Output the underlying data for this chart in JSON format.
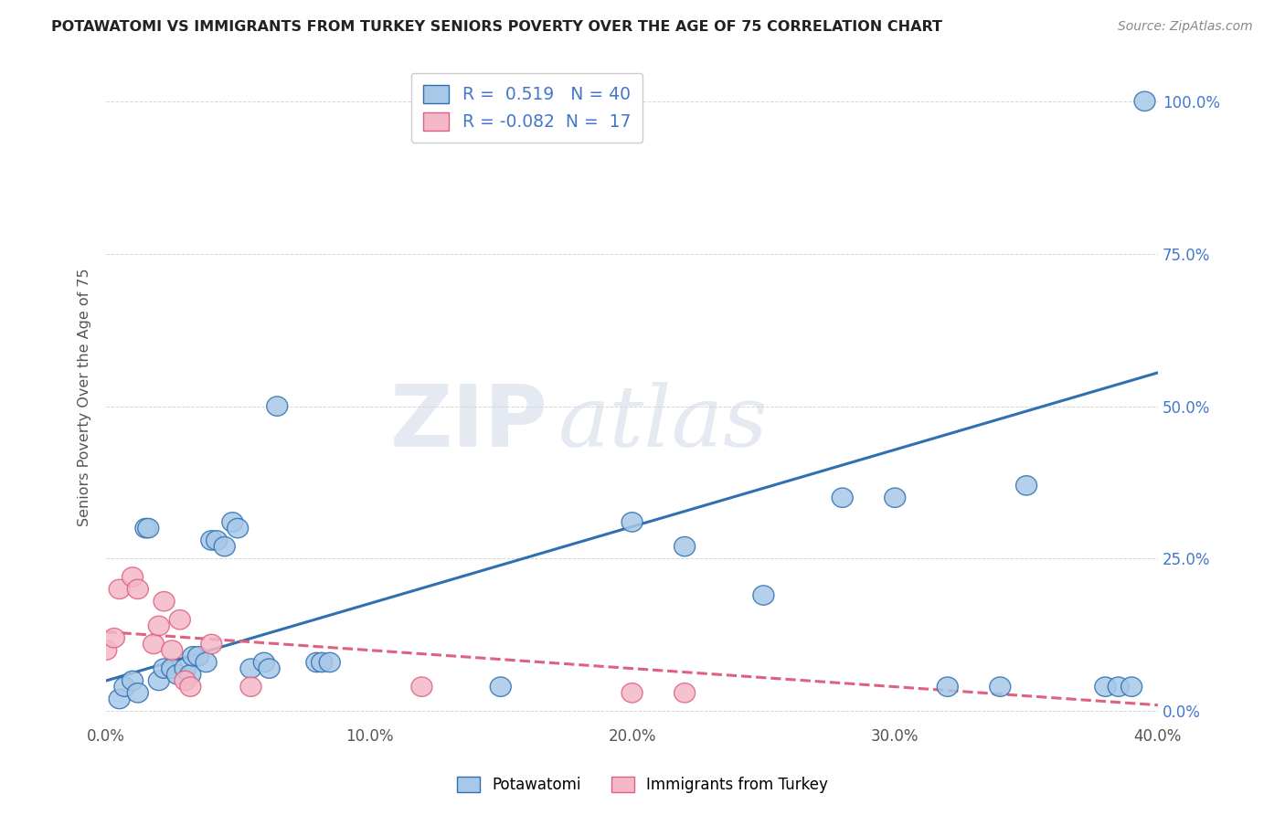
{
  "title": "POTAWATOMI VS IMMIGRANTS FROM TURKEY SENIORS POVERTY OVER THE AGE OF 75 CORRELATION CHART",
  "source": "Source: ZipAtlas.com",
  "ylabel": "Seniors Poverty Over the Age of 75",
  "xlim": [
    0.0,
    0.4
  ],
  "ylim": [
    -0.02,
    1.05
  ],
  "xticks": [
    0.0,
    0.1,
    0.2,
    0.3,
    0.4
  ],
  "yticks": [
    0.0,
    0.25,
    0.5,
    0.75,
    1.0
  ],
  "xtick_labels": [
    "0.0%",
    "10.0%",
    "20.0%",
    "30.0%",
    "40.0%"
  ],
  "ytick_labels": [
    "0.0%",
    "25.0%",
    "50.0%",
    "75.0%",
    "100.0%"
  ],
  "blue_color": "#a8c8e8",
  "pink_color": "#f4b8c8",
  "blue_line_color": "#3070b0",
  "pink_line_color": "#e06080",
  "blue_R": 0.519,
  "blue_N": 40,
  "pink_R": -0.082,
  "pink_N": 17,
  "watermark": "ZIPatlas",
  "blue_scatter": [
    [
      0.005,
      0.02
    ],
    [
      0.007,
      0.04
    ],
    [
      0.01,
      0.05
    ],
    [
      0.012,
      0.03
    ],
    [
      0.015,
      0.3
    ],
    [
      0.016,
      0.3
    ],
    [
      0.02,
      0.05
    ],
    [
      0.022,
      0.07
    ],
    [
      0.025,
      0.07
    ],
    [
      0.027,
      0.06
    ],
    [
      0.03,
      0.07
    ],
    [
      0.032,
      0.06
    ],
    [
      0.033,
      0.09
    ],
    [
      0.035,
      0.09
    ],
    [
      0.038,
      0.08
    ],
    [
      0.04,
      0.28
    ],
    [
      0.042,
      0.28
    ],
    [
      0.045,
      0.27
    ],
    [
      0.048,
      0.31
    ],
    [
      0.05,
      0.3
    ],
    [
      0.055,
      0.07
    ],
    [
      0.06,
      0.08
    ],
    [
      0.062,
      0.07
    ],
    [
      0.065,
      0.5
    ],
    [
      0.08,
      0.08
    ],
    [
      0.082,
      0.08
    ],
    [
      0.085,
      0.08
    ],
    [
      0.15,
      0.04
    ],
    [
      0.2,
      0.31
    ],
    [
      0.22,
      0.27
    ],
    [
      0.25,
      0.19
    ],
    [
      0.28,
      0.35
    ],
    [
      0.3,
      0.35
    ],
    [
      0.35,
      0.37
    ],
    [
      0.38,
      0.04
    ],
    [
      0.385,
      0.04
    ],
    [
      0.39,
      0.04
    ],
    [
      0.395,
      1.0
    ],
    [
      0.32,
      0.04
    ],
    [
      0.34,
      0.04
    ]
  ],
  "pink_scatter": [
    [
      0.0,
      0.1
    ],
    [
      0.003,
      0.12
    ],
    [
      0.005,
      0.2
    ],
    [
      0.01,
      0.22
    ],
    [
      0.012,
      0.2
    ],
    [
      0.018,
      0.11
    ],
    [
      0.02,
      0.14
    ],
    [
      0.022,
      0.18
    ],
    [
      0.025,
      0.1
    ],
    [
      0.028,
      0.15
    ],
    [
      0.03,
      0.05
    ],
    [
      0.032,
      0.04
    ],
    [
      0.04,
      0.11
    ],
    [
      0.055,
      0.04
    ],
    [
      0.12,
      0.04
    ],
    [
      0.2,
      0.03
    ],
    [
      0.22,
      0.03
    ]
  ],
  "blue_line_x": [
    0.0,
    0.4
  ],
  "blue_line_y": [
    0.05,
    0.555
  ],
  "pink_line_x": [
    0.0,
    0.4
  ],
  "pink_line_y": [
    0.13,
    0.01
  ]
}
